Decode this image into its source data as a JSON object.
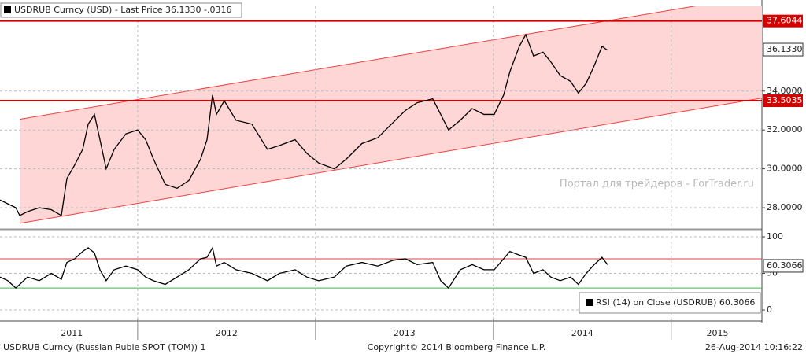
{
  "chart_data": [
    {
      "type": "line",
      "series": [
        {
          "name": "USDRUB Curncy (USD)  - Last Price 36.1330  -.0316",
          "color": "#000000",
          "values": [
            28.4,
            28.2,
            28.0,
            27.6,
            27.8,
            28.0,
            27.9,
            27.6,
            29.5,
            30.2,
            31.0,
            32.3,
            32.8,
            31.5,
            30.0,
            31.0,
            31.8,
            32.0,
            31.5,
            30.5,
            29.2,
            29.0,
            29.4,
            30.5,
            31.5,
            33.8,
            32.8,
            33.5,
            32.5,
            32.3,
            31.0,
            31.2,
            31.5,
            30.8,
            30.3,
            30.0,
            30.5,
            31.3,
            31.6,
            32.4,
            33.0,
            33.4,
            33.6,
            32.8,
            32.0,
            32.5,
            33.1,
            32.8,
            32.8,
            33.8,
            35.0,
            36.3,
            36.9,
            35.8,
            36.0,
            35.5,
            34.8,
            34.5,
            33.9,
            34.4,
            35.3,
            36.3,
            36.1
          ]
        }
      ],
      "x": [
        2011.226,
        2011.27,
        2011.315,
        2011.337,
        2011.381,
        2011.447,
        2011.514,
        2011.571,
        2011.602,
        2011.646,
        2011.691,
        2011.722,
        2011.757,
        2011.788,
        2011.823,
        2011.868,
        2011.934,
        2012.0,
        2012.045,
        2012.089,
        2012.155,
        2012.222,
        2012.288,
        2012.354,
        2012.39,
        2012.421,
        2012.443,
        2012.487,
        2012.553,
        2012.642,
        2012.73,
        2012.797,
        2012.885,
        2012.951,
        2013.018,
        2013.106,
        2013.173,
        2013.261,
        2013.35,
        2013.438,
        2013.505,
        2013.571,
        2013.659,
        2013.704,
        2013.748,
        2013.814,
        2013.881,
        2013.947,
        2014.005,
        2014.058,
        2014.093,
        2014.146,
        2014.182,
        2014.226,
        2014.279,
        2014.323,
        2014.376,
        2014.434,
        2014.478,
        2014.522,
        2014.567,
        2014.611,
        2014.642
      ],
      "xlim": [
        2011.226,
        2015.51
      ],
      "ylim": [
        26.95,
        38.36
      ],
      "yticks": [
        {
          "value": 28,
          "label": "28.0000"
        },
        {
          "value": 30,
          "label": "30.0000"
        },
        {
          "value": 32,
          "label": "32.0000"
        },
        {
          "value": 34,
          "label": "34.0000"
        }
      ],
      "grid": true,
      "channel": {
        "color": "#f04040",
        "fill": "#ffd6d6",
        "x": [
          2011.337,
          2015.51
        ],
        "upper": [
          32.55,
          38.95
        ],
        "lower": [
          27.2,
          33.64
        ]
      },
      "levels": [
        {
          "value": 37.6044,
          "label": "37.6044",
          "color": "#d40000"
        },
        {
          "value": 33.5035,
          "label": "33.5035",
          "color": "#d40000"
        }
      ],
      "last_label": {
        "value": 36.133,
        "label": "36.1330"
      },
      "watermark": "Портал для трейдеров - ForTrader.ru"
    },
    {
      "type": "line",
      "series": [
        {
          "name": "RSI (14) on Close (USDRUB) 60.3066",
          "color": "#000000",
          "values": [
            45,
            40,
            30,
            35,
            45,
            40,
            50,
            42,
            65,
            70,
            80,
            85,
            78,
            55,
            40,
            55,
            60,
            55,
            45,
            40,
            35,
            45,
            55,
            70,
            72,
            85,
            60,
            65,
            55,
            50,
            40,
            50,
            55,
            45,
            40,
            45,
            60,
            65,
            60,
            68,
            70,
            62,
            65,
            40,
            30,
            55,
            62,
            55,
            55,
            70,
            80,
            75,
            72,
            50,
            55,
            45,
            40,
            45,
            35,
            50,
            62,
            72,
            62
          ]
        }
      ],
      "x": [
        2011.226,
        2011.27,
        2011.315,
        2011.337,
        2011.381,
        2011.447,
        2011.514,
        2011.571,
        2011.602,
        2011.646,
        2011.691,
        2011.722,
        2011.757,
        2011.788,
        2011.823,
        2011.868,
        2011.934,
        2012.0,
        2012.045,
        2012.089,
        2012.155,
        2012.222,
        2012.288,
        2012.354,
        2012.39,
        2012.421,
        2012.443,
        2012.487,
        2012.553,
        2012.642,
        2012.73,
        2012.797,
        2012.885,
        2012.951,
        2013.018,
        2013.106,
        2013.173,
        2013.261,
        2013.35,
        2013.438,
        2013.505,
        2013.571,
        2013.659,
        2013.704,
        2013.748,
        2013.814,
        2013.881,
        2013.947,
        2014.005,
        2014.058,
        2014.093,
        2014.146,
        2014.182,
        2014.226,
        2014.279,
        2014.323,
        2014.376,
        2014.434,
        2014.478,
        2014.522,
        2014.567,
        2014.611,
        2014.642
      ],
      "xlim": [
        2011.226,
        2015.51
      ],
      "ylim": [
        -11.8,
        106.5
      ],
      "yticks": [
        0,
        50,
        100
      ],
      "grid": true,
      "levels": [
        {
          "value": 70,
          "color": "#e04040"
        },
        {
          "value": 30,
          "color": "#30c030"
        }
      ],
      "last_label": {
        "value": 60.3066,
        "label": "60.3066"
      },
      "xticks": [
        2012,
        2013,
        2014,
        2015
      ],
      "xlabels": [
        {
          "value": 2011.63,
          "label": "2011"
        },
        {
          "value": 2012.5,
          "label": "2012"
        },
        {
          "value": 2013.5,
          "label": "2013"
        },
        {
          "value": 2014.5,
          "label": "2014"
        },
        {
          "value": 2015.26,
          "label": "2015"
        }
      ]
    }
  ],
  "footer": {
    "left": "USDRUB Curncy (Russian Ruble SPOT (TOM)) 1",
    "center": "Copyright© 2014 Bloomberg Finance L.P.",
    "right": "26-Aug-2014 10:16:22"
  }
}
